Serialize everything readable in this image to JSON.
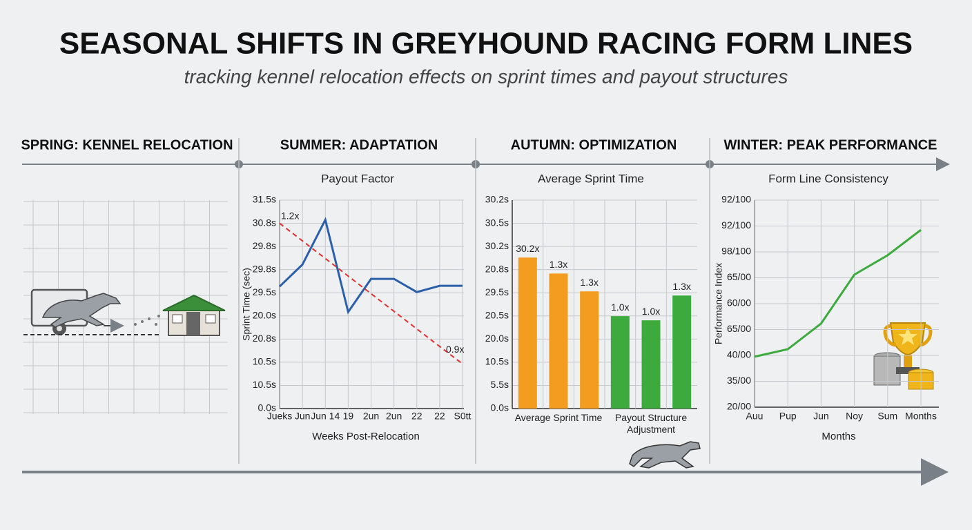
{
  "title": "SEASONAL SHIFTS IN GREYHOUND RACING FORM LINES",
  "subtitle": "tracking kennel relocation effects on sprint times and payout structures",
  "sections": [
    "SPRING: KENNEL RELOCATION",
    "SUMMER: ADAPTATION",
    "AUTUMN: OPTIMIZATION",
    "WINTER: PEAK PERFORMANCE"
  ],
  "chart_data": [
    {
      "type": "line",
      "title": "Payout Factor",
      "xlabel": "Weeks Post-Relocation",
      "ylabel": "Sprint Time (sec)",
      "categories": [
        "Jueks",
        "Jun",
        "Jun 14",
        "19",
        "2un",
        "2un",
        "22",
        "22",
        "S0tt"
      ],
      "series": [
        {
          "color": "#2b5fa8",
          "dashed": false,
          "values": [
            5.27,
            6.22,
            8.15,
            4.17,
            5.6,
            5.6,
            5.03,
            5.3,
            5.3
          ]
        },
        {
          "color": "#e03030",
          "dashed": true,
          "values": [
            8.0,
            7.24,
            6.48,
            5.72,
            4.96,
            4.2,
            3.44,
            2.68,
            1.93
          ]
        }
      ],
      "annotations": [
        "1.2x",
        "0.9x"
      ],
      "ylim": [
        0,
        9
      ],
      "yticks": [
        {
          "value": 0,
          "label": "0.0s"
        },
        {
          "value": 1,
          "label": "10.5s"
        },
        {
          "value": 2,
          "label": "10.5s"
        },
        {
          "value": 3,
          "label": "20.8s"
        },
        {
          "value": 4,
          "label": "20.0s"
        },
        {
          "value": 5,
          "label": "29.5s"
        },
        {
          "value": 6,
          "label": "29.8s"
        },
        {
          "value": 7,
          "label": "29.8s"
        },
        {
          "value": 8,
          "label": "30.8s"
        },
        {
          "value": 9,
          "label": "31.5s"
        }
      ],
      "grid": true
    },
    {
      "type": "bar",
      "title": "Average Sprint Time",
      "groups": [
        {
          "name": "Average Sprint Time",
          "color": "#f39c1f",
          "values": [
            6.52,
            5.83,
            5.06
          ],
          "annotations": [
            "30.2x",
            "1.3x",
            "1.3x"
          ]
        },
        {
          "name": "Payout Structure Adjustment",
          "color": "#3daa3d",
          "values": [
            3.99,
            3.81,
            4.88
          ],
          "annotations": [
            "1.0x",
            "1.0x",
            "1.3x"
          ]
        }
      ],
      "ylim": [
        0,
        9
      ],
      "yticks": [
        {
          "value": 0,
          "label": "0.0s"
        },
        {
          "value": 1,
          "label": "5.5s"
        },
        {
          "value": 2,
          "label": "10.5s"
        },
        {
          "value": 3,
          "label": "20.0s"
        },
        {
          "value": 4,
          "label": "20.5s"
        },
        {
          "value": 5,
          "label": "29.5s"
        },
        {
          "value": 6,
          "label": "20.8s"
        },
        {
          "value": 7,
          "label": "30.2s"
        },
        {
          "value": 8,
          "label": "30.5s"
        },
        {
          "value": 9,
          "label": "30.2s"
        }
      ],
      "grid": true
    },
    {
      "type": "line",
      "title": "Form Line Consistency",
      "xlabel": "Months",
      "ylabel": "Performance Index",
      "categories": [
        "Auu",
        "Pup",
        "Jun",
        "Noy",
        "Sum",
        "Months"
      ],
      "series": [
        {
          "color": "#3daa3d",
          "dashed": false,
          "values": [
            1.95,
            2.24,
            3.23,
            5.12,
            5.87,
            6.85
          ]
        }
      ],
      "ylim": [
        0,
        8
      ],
      "yticks": [
        {
          "value": 0,
          "label": "20/00"
        },
        {
          "value": 1,
          "label": "35/00"
        },
        {
          "value": 2,
          "label": "40/00"
        },
        {
          "value": 3,
          "label": "65/00"
        },
        {
          "value": 4,
          "label": "60/00"
        },
        {
          "value": 5,
          "label": "65/00"
        },
        {
          "value": 6,
          "label": "98/100"
        },
        {
          "value": 7,
          "label": "92/100"
        },
        {
          "value": 8,
          "label": "92/100"
        }
      ],
      "grid": true
    }
  ]
}
